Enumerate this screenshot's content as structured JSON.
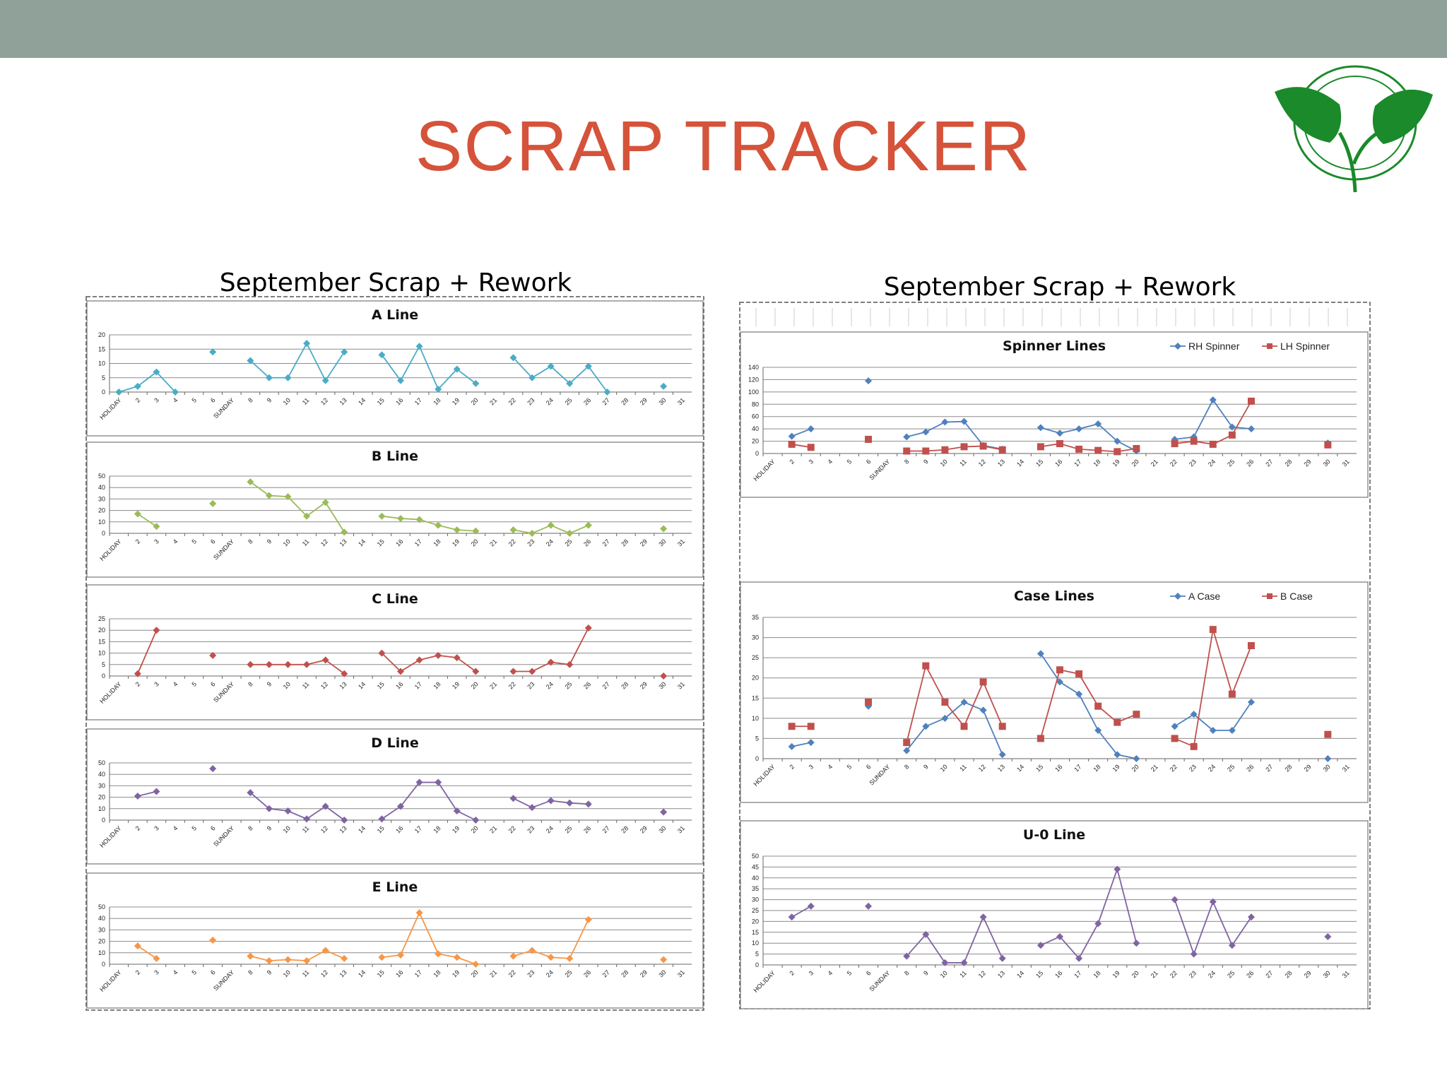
{
  "header": {
    "title": "SCRAP  TRACKER"
  },
  "colors": {
    "bar": "#8fa198",
    "title": "#d5533a",
    "logo_green": "#1a8a2a",
    "grid": "#8c8c8c"
  },
  "x_categories": [
    "HOLIDAY",
    "2",
    "3",
    "4",
    "5",
    "6",
    "SUNDAY",
    "8",
    "9",
    "10",
    "11",
    "12",
    "13",
    "14",
    "15",
    "16",
    "17",
    "18",
    "19",
    "20",
    "21",
    "22",
    "23",
    "24",
    "25",
    "26",
    "27",
    "28",
    "29",
    "30",
    "31"
  ],
  "panels": [
    {
      "title": "September Scrap + Rework"
    },
    {
      "title": "September Scrap + Rework"
    }
  ],
  "chart_data": [
    {
      "type": "line",
      "title": "A Line",
      "ylim": [
        0,
        20
      ],
      "yticks": [
        0,
        5,
        10,
        15,
        20
      ],
      "legend": false,
      "series": [
        {
          "color": "#4bacc6",
          "marker": "diamond",
          "values": [
            0,
            2,
            7,
            0,
            null,
            14,
            null,
            11,
            5,
            5,
            17,
            4,
            14,
            null,
            13,
            4,
            16,
            1,
            8,
            3,
            null,
            12,
            5,
            9,
            3,
            9,
            0,
            null,
            null,
            2,
            null
          ]
        }
      ]
    },
    {
      "type": "line",
      "title": "B Line",
      "ylim": [
        0,
        50
      ],
      "yticks": [
        0,
        10,
        20,
        30,
        40,
        50
      ],
      "legend": false,
      "series": [
        {
          "color": "#9bbb59",
          "marker": "diamond",
          "values": [
            null,
            17,
            6,
            null,
            null,
            26,
            null,
            45,
            33,
            32,
            15,
            27,
            1,
            null,
            15,
            13,
            12,
            7,
            3,
            2,
            null,
            3,
            0,
            7,
            0,
            7,
            null,
            null,
            null,
            4,
            null
          ]
        }
      ]
    },
    {
      "type": "line",
      "title": "C Line",
      "ylim": [
        0,
        25
      ],
      "yticks": [
        0,
        5,
        10,
        15,
        20,
        25
      ],
      "legend": false,
      "series": [
        {
          "color": "#c0504d",
          "marker": "diamond",
          "values": [
            null,
            1,
            20,
            null,
            null,
            9,
            null,
            5,
            5,
            5,
            5,
            7,
            1,
            null,
            10,
            2,
            7,
            9,
            8,
            2,
            null,
            2,
            2,
            6,
            5,
            21,
            null,
            null,
            null,
            0,
            null
          ]
        }
      ]
    },
    {
      "type": "line",
      "title": "D Line",
      "ylim": [
        0,
        50
      ],
      "yticks": [
        0,
        10,
        20,
        30,
        40,
        50
      ],
      "legend": false,
      "series": [
        {
          "color": "#8064a2",
          "marker": "diamond",
          "values": [
            null,
            21,
            25,
            null,
            null,
            45,
            null,
            24,
            10,
            8,
            1,
            12,
            0,
            null,
            1,
            12,
            33,
            33,
            8,
            0,
            null,
            19,
            11,
            17,
            15,
            14,
            null,
            null,
            null,
            7,
            null
          ]
        }
      ]
    },
    {
      "type": "line",
      "title": "E Line",
      "ylim": [
        0,
        50
      ],
      "yticks": [
        0,
        10,
        20,
        30,
        40,
        50
      ],
      "legend": false,
      "series": [
        {
          "color": "#f79646",
          "marker": "diamond",
          "values": [
            null,
            16,
            5,
            null,
            null,
            21,
            null,
            7,
            3,
            4,
            3,
            12,
            5,
            null,
            6,
            8,
            45,
            9,
            6,
            0,
            null,
            7,
            12,
            6,
            5,
            39,
            null,
            null,
            null,
            4,
            null
          ]
        }
      ]
    },
    {
      "type": "line",
      "title": "Spinner Lines",
      "ylim": [
        0,
        140
      ],
      "yticks": [
        0,
        20,
        40,
        60,
        80,
        100,
        120,
        140
      ],
      "legend": true,
      "series": [
        {
          "name": "RH Spinner",
          "color": "#4f81bd",
          "marker": "diamond",
          "values": [
            null,
            28,
            40,
            null,
            null,
            118,
            null,
            27,
            35,
            51,
            52,
            13,
            7,
            null,
            42,
            33,
            40,
            48,
            20,
            4,
            null,
            23,
            27,
            87,
            43,
            40,
            null,
            null,
            null,
            17,
            null
          ]
        },
        {
          "name": "LH Spinner",
          "color": "#c0504d",
          "marker": "square",
          "values": [
            null,
            15,
            10,
            null,
            null,
            23,
            null,
            4,
            4,
            6,
            11,
            12,
            6,
            null,
            11,
            16,
            7,
            5,
            3,
            8,
            null,
            16,
            20,
            15,
            30,
            85,
            null,
            null,
            null,
            14,
            null
          ]
        }
      ]
    },
    {
      "type": "line",
      "title": "Case Lines",
      "ylim": [
        0,
        35
      ],
      "yticks": [
        0,
        5,
        10,
        15,
        20,
        25,
        30,
        35
      ],
      "legend": true,
      "series": [
        {
          "name": "A Case",
          "color": "#4f81bd",
          "marker": "diamond",
          "values": [
            null,
            3,
            4,
            null,
            null,
            13,
            null,
            2,
            8,
            10,
            14,
            12,
            1,
            null,
            26,
            19,
            16,
            7,
            1,
            0,
            null,
            8,
            11,
            7,
            7,
            14,
            null,
            null,
            null,
            0,
            null
          ]
        },
        {
          "name": "B Case",
          "color": "#c0504d",
          "marker": "square",
          "values": [
            null,
            8,
            8,
            null,
            null,
            14,
            null,
            4,
            23,
            14,
            8,
            19,
            8,
            null,
            5,
            22,
            21,
            13,
            9,
            11,
            null,
            5,
            3,
            32,
            16,
            28,
            null,
            null,
            null,
            6,
            null
          ]
        }
      ]
    },
    {
      "type": "line",
      "title": "U-0 Line",
      "ylim": [
        0,
        50
      ],
      "yticks": [
        0,
        5,
        10,
        15,
        20,
        25,
        30,
        35,
        40,
        45,
        50
      ],
      "legend": false,
      "series": [
        {
          "color": "#8064a2",
          "marker": "diamond",
          "values": [
            null,
            22,
            27,
            null,
            null,
            27,
            null,
            4,
            14,
            1,
            1,
            22,
            3,
            null,
            9,
            13,
            3,
            19,
            44,
            10,
            null,
            30,
            5,
            29,
            9,
            22,
            null,
            null,
            null,
            13,
            null
          ]
        }
      ]
    }
  ]
}
